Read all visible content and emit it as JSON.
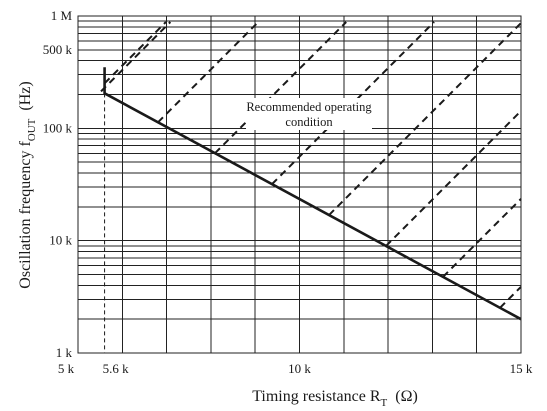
{
  "chart_data": {
    "type": "line",
    "xlabel": "Timing resistance  R",
    "xlabel_sub": "T",
    "xlabel_unit": "(Ω)",
    "ylabel": "Oscillation frequency  f",
    "ylabel_sub": "OUT",
    "ylabel_unit": "(Hz)",
    "x_scale": "linear",
    "y_scale": "log",
    "xlim": [
      5000,
      15000
    ],
    "ylim": [
      1000,
      1000000
    ],
    "x_ticks": [
      {
        "value": 5000,
        "label": "5 k"
      },
      {
        "value": 5600,
        "label": "5.6 k"
      },
      {
        "value": 10000,
        "label": "10 k"
      },
      {
        "value": 15000,
        "label": "15 k"
      }
    ],
    "y_ticks": [
      {
        "value": 1000,
        "label": "1 k"
      },
      {
        "value": 10000,
        "label": "10 k"
      },
      {
        "value": 100000,
        "label": "100 k"
      },
      {
        "value": 500000,
        "label": "500 k"
      },
      {
        "value": 1000000,
        "label": "1 M"
      }
    ],
    "grid": true,
    "series": [
      {
        "name": "",
        "values_xy": [
          [
            5600,
            350000
          ],
          [
            5600,
            205000
          ],
          [
            15000,
            2000
          ]
        ]
      }
    ],
    "shaded_region": {
      "label": "Recommended operating condition",
      "style": "dashed hatching",
      "bounds": "x >= 5.6 k and above the limit line"
    },
    "reference_line": {
      "x": 5600,
      "style": "dashed vertical"
    },
    "annotation": [
      "Recommended operating",
      "condition"
    ]
  }
}
